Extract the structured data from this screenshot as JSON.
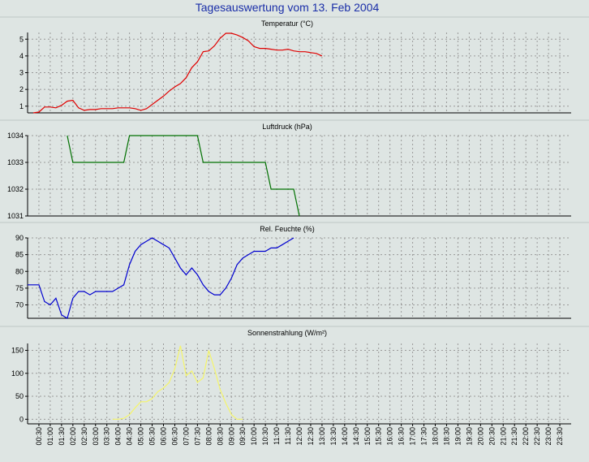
{
  "page": {
    "title": "Tagesauswertung vom 13. Feb 2004"
  },
  "colors": {
    "background": "#dee5e3",
    "title": "#1a2ea8",
    "grid": "#9a9a9a",
    "temperature": "#e00000",
    "pressure": "#007000",
    "humidity": "#0000d0",
    "radiation": "#f5f56a"
  },
  "chart_data": [
    {
      "type": "line",
      "title": "Temperatur (°C)",
      "ylim": [
        0.6,
        5.4
      ],
      "yticks": [
        1,
        2,
        3,
        4,
        5
      ],
      "grid": true,
      "series": [
        {
          "points": [
            [
              0.5,
              0.6
            ],
            [
              1.0,
              0.65
            ],
            [
              1.5,
              0.95
            ],
            [
              2.0,
              0.95
            ],
            [
              2.5,
              0.9
            ],
            [
              3.0,
              1.05
            ],
            [
              3.5,
              1.3
            ],
            [
              4.0,
              1.35
            ],
            [
              4.5,
              0.9
            ],
            [
              5.0,
              0.75
            ],
            [
              5.5,
              0.8
            ],
            [
              6.0,
              0.8
            ],
            [
              6.5,
              0.85
            ],
            [
              7.0,
              0.85
            ],
            [
              7.5,
              0.85
            ],
            [
              8.0,
              0.9
            ],
            [
              8.5,
              0.9
            ],
            [
              9.0,
              0.9
            ],
            [
              9.5,
              0.85
            ],
            [
              10.0,
              0.75
            ],
            [
              10.5,
              0.85
            ],
            [
              11.0,
              1.1
            ],
            [
              11.5,
              1.35
            ],
            [
              12.0,
              1.6
            ],
            [
              12.5,
              1.9
            ],
            [
              13.0,
              2.15
            ],
            [
              13.5,
              2.35
            ],
            [
              14.0,
              2.7
            ],
            [
              14.5,
              3.3
            ],
            [
              15.0,
              3.65
            ],
            [
              15.5,
              4.25
            ],
            [
              16.0,
              4.3
            ],
            [
              16.5,
              4.6
            ],
            [
              17.0,
              5.05
            ],
            [
              17.5,
              5.35
            ],
            [
              18.0,
              5.35
            ],
            [
              18.5,
              5.25
            ],
            [
              19.0,
              5.1
            ],
            [
              19.5,
              4.9
            ],
            [
              20.0,
              4.55
            ],
            [
              20.5,
              4.45
            ],
            [
              21.0,
              4.45
            ],
            [
              21.5,
              4.4
            ],
            [
              22.0,
              4.35
            ],
            [
              22.5,
              4.35
            ],
            [
              23.0,
              4.4
            ],
            [
              23.5,
              4.3
            ],
            [
              24.0,
              4.25
            ],
            [
              24.5,
              4.25
            ],
            [
              25.0,
              4.2
            ],
            [
              25.5,
              4.15
            ],
            [
              26.0,
              4.0
            ]
          ]
        }
      ]
    },
    {
      "type": "line",
      "title": "Luftdruck (hPa)",
      "ylim": [
        1031,
        1034
      ],
      "yticks": [
        1031,
        1032,
        1033,
        1034
      ],
      "grid": true,
      "series": [
        {
          "points": [
            [
              3.5,
              1034
            ],
            [
              4.0,
              1033
            ],
            [
              8.5,
              1033
            ],
            [
              9.0,
              1034
            ],
            [
              15.0,
              1034
            ],
            [
              15.5,
              1033
            ],
            [
              21.0,
              1033
            ],
            [
              21.5,
              1032
            ],
            [
              23.5,
              1032
            ],
            [
              24.0,
              1031
            ]
          ]
        }
      ]
    },
    {
      "type": "line",
      "title": "Rel. Feuchte (%)",
      "ylim": [
        66,
        90
      ],
      "yticks": [
        70,
        75,
        80,
        85,
        90
      ],
      "grid": true,
      "series": [
        {
          "points": [
            [
              0.0,
              76
            ],
            [
              1.0,
              76
            ],
            [
              1.5,
              71
            ],
            [
              2.0,
              70
            ],
            [
              2.5,
              72
            ],
            [
              3.0,
              67
            ],
            [
              3.5,
              66
            ],
            [
              4.0,
              72
            ],
            [
              4.5,
              74
            ],
            [
              5.0,
              74
            ],
            [
              5.5,
              73
            ],
            [
              6.0,
              74
            ],
            [
              7.0,
              74
            ],
            [
              7.5,
              74
            ],
            [
              8.0,
              75
            ],
            [
              8.5,
              76
            ],
            [
              9.0,
              82
            ],
            [
              9.5,
              86
            ],
            [
              10.0,
              88
            ],
            [
              10.5,
              89
            ],
            [
              11.0,
              90
            ],
            [
              11.5,
              89
            ],
            [
              12.0,
              88
            ],
            [
              12.5,
              87
            ],
            [
              13.0,
              84
            ],
            [
              13.5,
              81
            ],
            [
              14.0,
              79
            ],
            [
              14.5,
              81
            ],
            [
              15.0,
              79
            ],
            [
              15.5,
              76
            ],
            [
              16.0,
              74
            ],
            [
              16.5,
              73
            ],
            [
              17.0,
              73
            ],
            [
              17.5,
              75
            ],
            [
              18.0,
              78
            ],
            [
              18.5,
              82
            ],
            [
              19.0,
              84
            ],
            [
              19.5,
              85
            ],
            [
              20.0,
              86
            ],
            [
              20.5,
              86
            ],
            [
              21.0,
              86
            ],
            [
              21.5,
              87
            ],
            [
              22.0,
              87
            ],
            [
              22.5,
              88
            ],
            [
              23.0,
              89
            ],
            [
              23.5,
              90
            ]
          ]
        }
      ]
    },
    {
      "type": "line",
      "title": "Sonnenstrahlung (W/m²)",
      "ylim": [
        -10,
        165
      ],
      "yticks": [
        0,
        50,
        100,
        150
      ],
      "grid": true,
      "series": [
        {
          "points": [
            [
              7.5,
              0
            ],
            [
              8.0,
              0
            ],
            [
              8.5,
              2
            ],
            [
              9.0,
              10
            ],
            [
              9.5,
              25
            ],
            [
              10.0,
              38
            ],
            [
              10.5,
              38
            ],
            [
              11.0,
              45
            ],
            [
              11.5,
              60
            ],
            [
              12.0,
              68
            ],
            [
              12.5,
              80
            ],
            [
              13.0,
              110
            ],
            [
              13.5,
              160
            ],
            [
              14.0,
              95
            ],
            [
              14.5,
              105
            ],
            [
              15.0,
              80
            ],
            [
              15.5,
              90
            ],
            [
              16.0,
              150
            ],
            [
              16.5,
              110
            ],
            [
              17.0,
              65
            ],
            [
              17.5,
              35
            ],
            [
              18.0,
              10
            ],
            [
              18.5,
              0
            ],
            [
              19.0,
              0
            ]
          ]
        }
      ]
    }
  ],
  "x_axis": {
    "ticks": [
      "00:30",
      "01:00",
      "01:30",
      "02:00",
      "02:30",
      "03:00",
      "03:30",
      "04:00",
      "04:30",
      "05:00",
      "05:30",
      "06:00",
      "06:30",
      "07:00",
      "07:30",
      "08:00",
      "08:30",
      "09:00",
      "09:30",
      "10:00",
      "10:30",
      "11:00",
      "11:30",
      "12:00",
      "12:30",
      "13:00",
      "13:30",
      "14:00",
      "14:30",
      "15:00",
      "15:30",
      "16:00",
      "16:30",
      "17:00",
      "17:30",
      "18:00",
      "18:30",
      "19:00",
      "19:30",
      "20:00",
      "20:30",
      "21:00",
      "21:30",
      "22:00",
      "22:30",
      "23:00",
      "23:30"
    ]
  }
}
